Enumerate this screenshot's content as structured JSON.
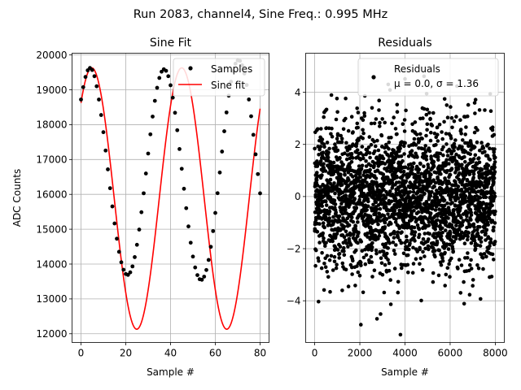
{
  "suptitle": "Run 2083, channel4, Sine Freq.: 0.995 MHz",
  "chart_data": [
    {
      "type": "scatter",
      "title": "Sine Fit",
      "xlabel": "Sample #",
      "ylabel": "ADC Counts",
      "xlim": [
        -4,
        84
      ],
      "ylim": [
        11750,
        20050
      ],
      "xticks": [
        0,
        20,
        40,
        60,
        80
      ],
      "yticks": [
        12000,
        13000,
        14000,
        15000,
        16000,
        17000,
        18000,
        19000,
        20000
      ],
      "grid": true,
      "legend": {
        "position": "top-right",
        "entries": [
          "Samples",
          "Sine fit"
        ]
      },
      "fit": {
        "offset": 15880,
        "amplitude": 3750,
        "period": 40.2,
        "peak_at": 4.8
      },
      "series": [
        {
          "name": "Samples",
          "style": "points",
          "color": "#000000",
          "x": [
            0,
            1,
            2,
            3,
            4,
            5,
            6,
            7,
            8,
            9,
            10,
            11,
            12,
            13,
            14,
            15,
            16,
            17,
            18,
            19,
            20,
            21,
            22,
            23,
            24,
            25,
            26,
            27,
            28,
            29,
            30,
            31,
            32,
            33,
            34,
            35,
            36,
            37,
            38,
            39,
            40,
            41,
            42,
            43,
            44,
            45,
            46,
            47,
            48,
            49,
            50,
            51,
            52,
            53,
            54,
            55,
            56,
            57,
            58,
            59,
            60,
            61,
            62,
            63,
            64,
            65,
            66,
            67,
            68,
            69,
            70,
            71,
            72,
            73,
            74,
            75,
            76,
            77,
            78,
            79,
            80
          ],
          "y": [
            18721,
            19075,
            19369,
            19559,
            19627,
            19569,
            19390,
            19101,
            18721,
            18277,
            17784,
            17258,
            16717,
            16177,
            15654,
            15165,
            14727,
            14352,
            14052,
            13837,
            13715,
            13689,
            13762,
            13933,
            14199,
            14553,
            14989,
            15488,
            16031,
            16599,
            17171,
            17722,
            18232,
            18684,
            19058,
            19340,
            19520,
            19590,
            19546,
            19391,
            19131,
            18776,
            18341,
            17841,
            17301,
            16734,
            16161,
            15603,
            15080,
            14612,
            14215,
            13902,
            13683,
            13565,
            13550,
            13639,
            13830,
            14118,
            14494,
            14947,
            15467,
            16034,
            16627,
            17228,
            17810,
            18351,
            18831,
            19232,
            19541,
            19748,
            19845,
            19829,
            19702,
            19469,
            19138,
            18723,
            18241,
            17709,
            17149,
            16582,
            16030
          ]
        },
        {
          "name": "Sine fit",
          "style": "line",
          "color": "#ff0000"
        }
      ]
    },
    {
      "type": "scatter",
      "title": "Residuals",
      "xlabel": "Sample #",
      "ylabel": "",
      "xlim": [
        -400,
        8400
      ],
      "ylim": [
        -5.6,
        5.5
      ],
      "xticks": [
        0,
        2000,
        4000,
        6000,
        8000
      ],
      "yticks": [
        -4,
        -2,
        0,
        2,
        4
      ],
      "grid": true,
      "legend": {
        "position": "top-right",
        "entries": [
          "Residuals",
          "μ = 0.0, σ = 1.36"
        ]
      },
      "n_points": 8000,
      "mean": 0.0,
      "sigma": 1.36,
      "series": [
        {
          "name": "Residuals",
          "style": "points",
          "color": "#000000"
        }
      ]
    }
  ],
  "labels": {
    "legend1_samples": "Samples",
    "legend1_fit": "Sine fit",
    "legend2_name": "Residuals",
    "legend2_stats": "μ = 0.0, σ = 1.36"
  }
}
